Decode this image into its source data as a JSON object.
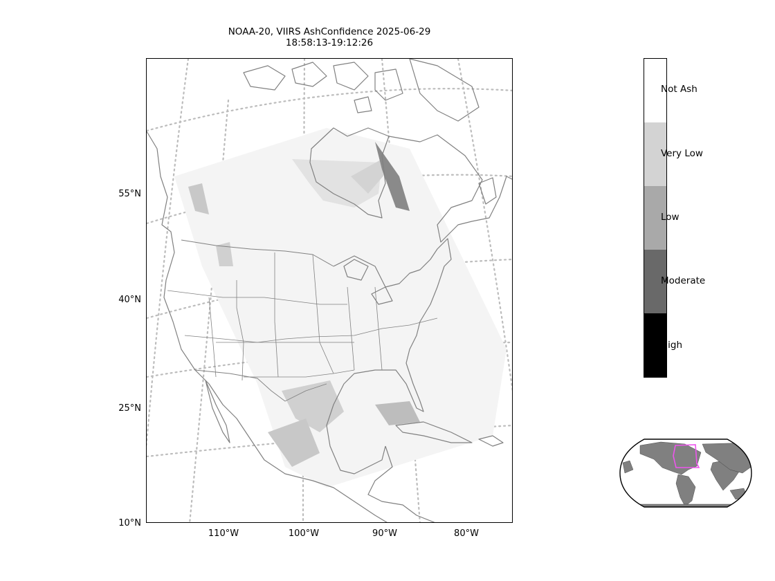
{
  "title": {
    "line1": "NOAA-20, VIIRS AshConfidence 2025-06-29",
    "line2": "18:58:13-19:12:26"
  },
  "axes": {
    "lat_labels": [
      "55°N",
      "40°N",
      "25°N",
      "10°N"
    ],
    "lon_labels": [
      "110°W",
      "100°W",
      "90°W",
      "80°W"
    ]
  },
  "colorbar": {
    "categories": [
      {
        "label": "Not Ash",
        "color": "#ffffff"
      },
      {
        "label": "Very Low",
        "color": "#d3d3d3"
      },
      {
        "label": "Low",
        "color": "#a9a9a9"
      },
      {
        "label": "Moderate",
        "color": "#696969"
      },
      {
        "label": "High",
        "color": "#000000"
      }
    ]
  },
  "colors": {
    "coastline": "#808080",
    "gridline": "#bcbcbc",
    "inset_land": "#808080",
    "inset_box": "#ee55ee"
  }
}
